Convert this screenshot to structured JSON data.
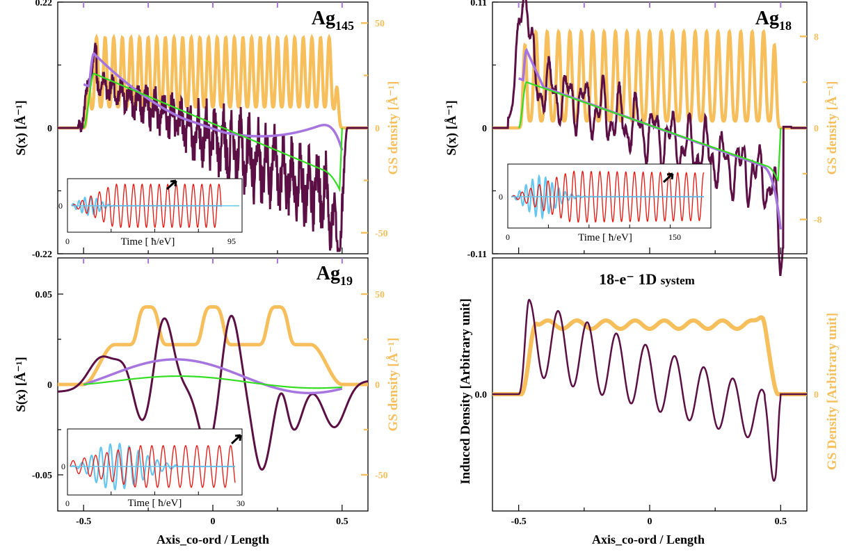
{
  "chart_data": [
    {
      "id": "ag145",
      "type": "line",
      "title_main": "Ag",
      "title_sub": "145",
      "xlabel": "",
      "ylabel": "S(x)  [Å⁻¹]",
      "y2label": "GS density [Å⁻¹]",
      "xlim": [
        -0.6,
        0.6
      ],
      "ylim": [
        -0.22,
        0.22
      ],
      "y2lim": [
        -60,
        60
      ],
      "yticks": [
        "0.22",
        "0",
        "-0.22"
      ],
      "y2ticks": [
        "50",
        "0",
        "-50"
      ],
      "colors": {
        "S": "#5b0f45",
        "drude": "#a775e0",
        "linear": "#33dd22",
        "gs": "#f6bf5c"
      },
      "inset": {
        "xlabel": "Time [ ħ/eV]",
        "xticks": [
          "0",
          "95"
        ],
        "ytick": "0",
        "red_color": "#e8120c",
        "blue_color": "#67c6f0"
      }
    },
    {
      "id": "ag18",
      "type": "line",
      "title_main": "Ag",
      "title_sub": "18",
      "xlabel": "",
      "ylabel": "S(x)  [Å⁻¹]",
      "y2label": "GS density [Å⁻¹]",
      "xlim": [
        -0.6,
        0.6
      ],
      "ylim": [
        -0.11,
        0.11
      ],
      "y2lim": [
        -11,
        11
      ],
      "yticks": [
        "0.11",
        "0",
        "-0.11"
      ],
      "y2ticks": [
        "8",
        "0",
        "-8"
      ],
      "colors": {
        "S": "#5b0f45",
        "drude": "#a775e0",
        "linear": "#33dd22",
        "gs": "#f6bf5c"
      },
      "inset": {
        "xlabel": "Time [ ħ/eV]",
        "xticks": [
          "0",
          "150"
        ],
        "ytick": "0",
        "red_color": "#e8120c",
        "blue_color": "#67c6f0"
      }
    },
    {
      "id": "ag19",
      "type": "line",
      "title_main": "Ag",
      "title_sub": "19",
      "xlabel": "Axis_co-ord / Length",
      "ylabel": "S(x)  [Å⁻¹]",
      "y2label": "GS density [Å⁻¹]",
      "xlim": [
        -0.6,
        0.6
      ],
      "ylim": [
        -0.07,
        0.07
      ],
      "y2lim": [
        -70,
        70
      ],
      "yticks": [
        "0.05",
        "0",
        "-0.05"
      ],
      "y2ticks": [
        "50",
        "0",
        "-50"
      ],
      "xticks": [
        "-0.5",
        "0",
        "0.5"
      ],
      "colors": {
        "S": "#5b0f45",
        "drude": "#a775e0",
        "linear": "#33dd22",
        "gs": "#f6bf5c"
      },
      "inset": {
        "xlabel": "Time [ ħ/eV]",
        "xticks": [
          "0",
          "30"
        ],
        "ytick": "0",
        "red_color": "#e8120c",
        "blue_color": "#67c6f0"
      }
    },
    {
      "id": "e18",
      "type": "line",
      "title_main": "18-e⁻ 1D",
      "title_sub": "system",
      "xlabel": "Axis_co-ord / Length",
      "ylabel": "Induced Density [Arbitrary unit]",
      "y2label": "GS Density [Arbitrary unit]",
      "xlim": [
        -0.6,
        0.6
      ],
      "yticks": [
        "0.0"
      ],
      "y2ticks": [
        "0"
      ],
      "xticks": [
        "-0.5",
        "0",
        "0.5"
      ],
      "colors": {
        "S": "#5b0f45",
        "gs": "#f6bf5c"
      }
    }
  ]
}
